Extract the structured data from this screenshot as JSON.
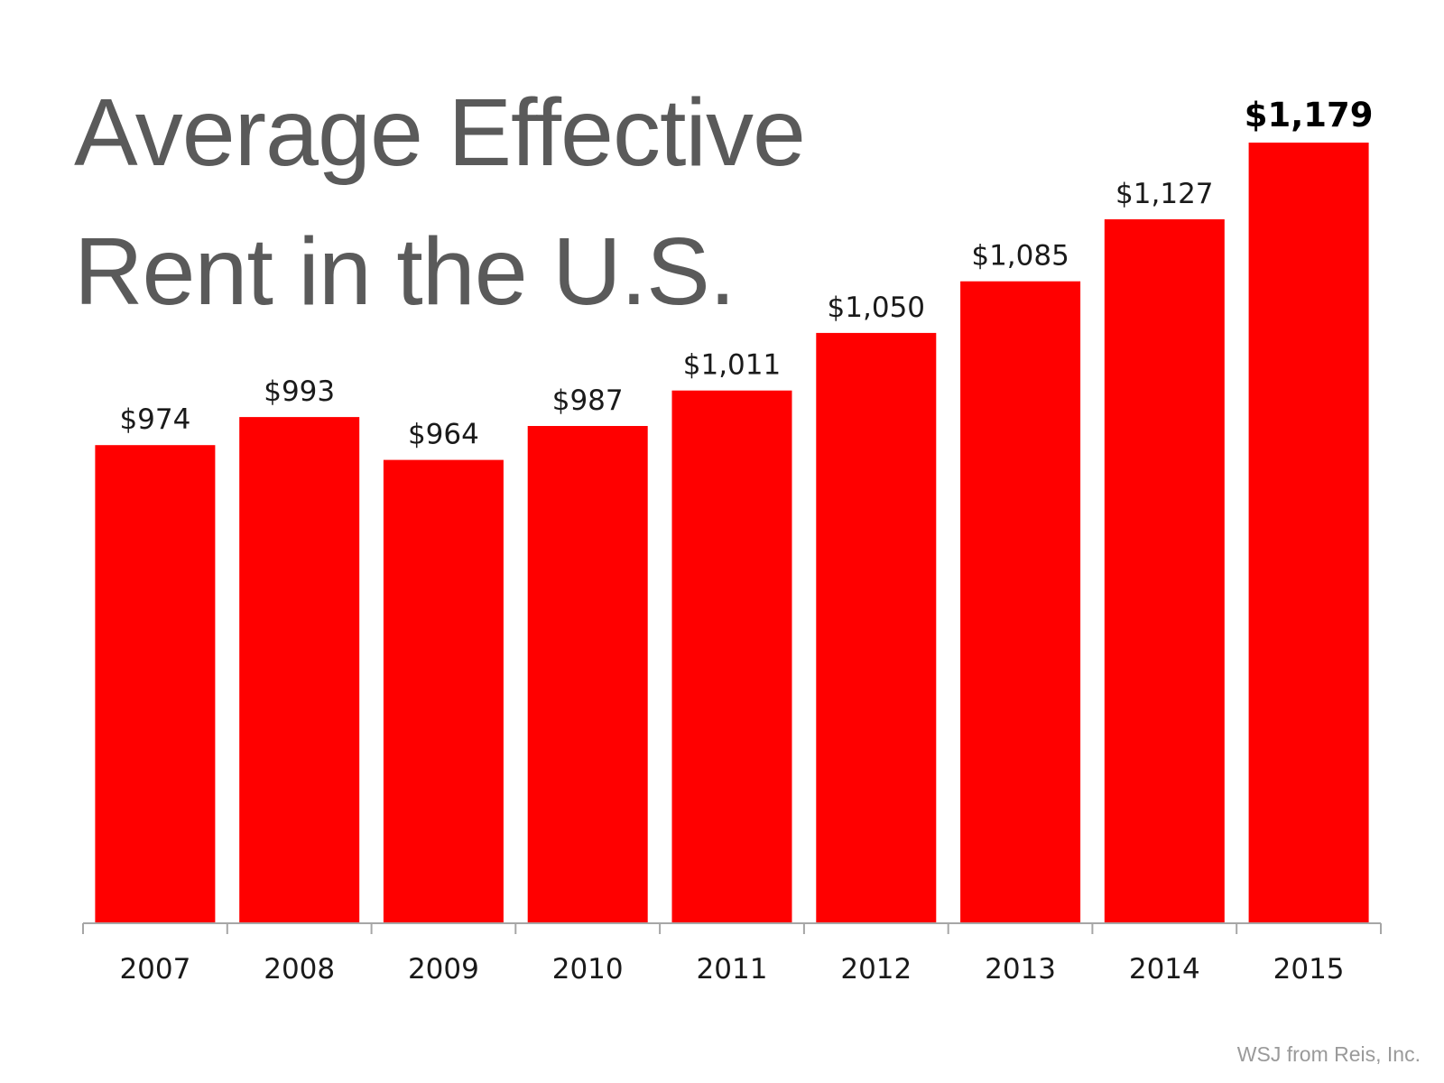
{
  "chart_data": {
    "type": "bar",
    "title_lines": [
      "Average Effective",
      "Rent in the U.S."
    ],
    "categories": [
      "2007",
      "2008",
      "2009",
      "2010",
      "2011",
      "2012",
      "2013",
      "2014",
      "2015"
    ],
    "values": [
      974,
      993,
      964,
      987,
      1011,
      1050,
      1085,
      1127,
      1179
    ],
    "labels": [
      "$974",
      "$993",
      "$964",
      "$987",
      "$1,011",
      "$1,050",
      "$1,085",
      "$1,127",
      "$1,179"
    ],
    "highlight_index": 8,
    "xlabel": "",
    "ylabel": "",
    "ylim": [
      650,
      1179
    ],
    "grid": false,
    "bar_color": "#ff0000",
    "source": "WSJ from Reis, Inc."
  }
}
